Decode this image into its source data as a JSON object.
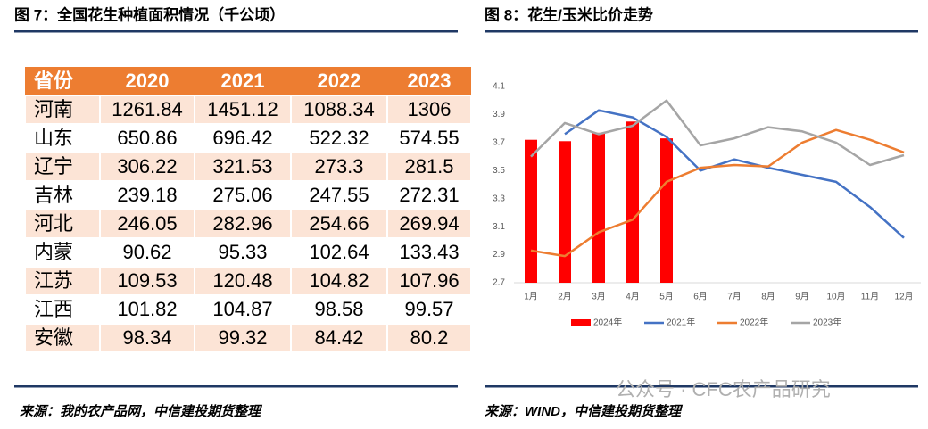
{
  "figure7": {
    "title": "图 7：全国花生种植面积情况（千公顷）",
    "table": {
      "header": [
        "省份",
        "2020",
        "2021",
        "2022",
        "2023"
      ],
      "rows": [
        [
          "河南",
          "1261.84",
          "1451.12",
          "1088.34",
          "1306"
        ],
        [
          "山东",
          "650.86",
          "696.42",
          "522.32",
          "574.55"
        ],
        [
          "辽宁",
          "306.22",
          "321.53",
          "273.3",
          "281.5"
        ],
        [
          "吉林",
          "239.18",
          "275.06",
          "247.55",
          "272.31"
        ],
        [
          "河北",
          "246.05",
          "282.96",
          "254.66",
          "269.94"
        ],
        [
          "内蒙",
          "90.62",
          "95.33",
          "102.64",
          "133.43"
        ],
        [
          "江苏",
          "109.53",
          "120.48",
          "104.82",
          "107.96"
        ],
        [
          "江西",
          "101.82",
          "104.87",
          "98.58",
          "99.57"
        ],
        [
          "安徽",
          "98.34",
          "99.32",
          "84.42",
          "80.2"
        ]
      ]
    },
    "source": "来源：我的农产品网，中信建投期货整理"
  },
  "figure8": {
    "title": "图 8：花生/玉米比价走势",
    "source": "来源：WIND，中信建投期货整理"
  },
  "watermark": "公众号 · CFC农产品研究",
  "chart_data": {
    "type": "bar_line",
    "categories": [
      "1月",
      "2月",
      "3月",
      "4月",
      "5月",
      "6月",
      "7月",
      "8月",
      "9月",
      "10月",
      "11月",
      "12月"
    ],
    "series": [
      {
        "name": "2024年",
        "type": "bar",
        "color": "#ff0000",
        "values": [
          3.72,
          3.71,
          3.77,
          3.85,
          3.73,
          null,
          null,
          null,
          null,
          null,
          null,
          null
        ]
      },
      {
        "name": "2021年",
        "type": "line",
        "color": "#4472c4",
        "values": [
          null,
          3.76,
          3.93,
          3.88,
          3.74,
          3.5,
          3.58,
          3.52,
          3.47,
          3.42,
          3.24,
          3.02
        ]
      },
      {
        "name": "2022年",
        "type": "line",
        "color": "#ed7d31",
        "values": [
          2.93,
          2.89,
          3.06,
          3.15,
          3.42,
          3.52,
          3.54,
          3.53,
          3.7,
          3.79,
          3.72,
          3.63
        ]
      },
      {
        "name": "2023年",
        "type": "line",
        "color": "#a5a5a5",
        "values": [
          3.6,
          3.84,
          3.76,
          3.82,
          4.0,
          3.68,
          3.73,
          3.81,
          3.78,
          3.7,
          3.54,
          3.61
        ]
      }
    ],
    "ylim": [
      2.7,
      4.1
    ],
    "yticks": [
      2.7,
      2.9,
      3.1,
      3.3,
      3.5,
      3.7,
      3.9,
      4.1
    ],
    "grid": false,
    "legend": "bottom"
  }
}
